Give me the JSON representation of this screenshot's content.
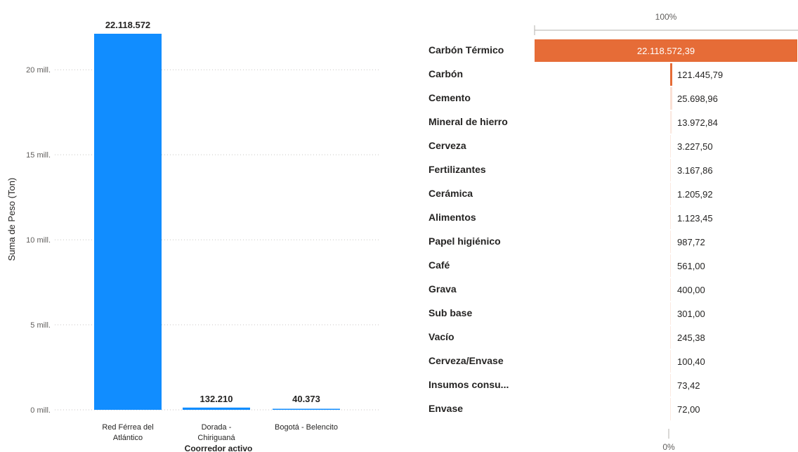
{
  "chart_data": [
    {
      "type": "bar",
      "ylabel": "Suma de Peso (Ton)",
      "xlabel": "Coorredor activo",
      "categories": [
        "Red Férrea del Atlántico",
        "Dorada - Chiriguaná",
        "Bogotá - Belencito"
      ],
      "category_lines": [
        [
          "Red Férrea del",
          "Atlántico"
        ],
        [
          "Dorada -",
          "Chiriguaná"
        ],
        [
          "Bogotá - Belencito"
        ]
      ],
      "values": [
        22118572,
        132210,
        40373
      ],
      "value_labels": [
        "22.118.572",
        "132.210",
        "40.373"
      ],
      "yticks": [
        0,
        5000000,
        10000000,
        15000000,
        20000000
      ],
      "ytick_labels": [
        "0 mill.",
        "5 mill.",
        "10 mill.",
        "15 mill.",
        "20 mill."
      ],
      "ylim": [
        0,
        22118572
      ],
      "grid": true,
      "color": "#118DFF"
    },
    {
      "type": "bar",
      "orientation": "horizontal",
      "top_label": "100%",
      "bottom_label": "0%",
      "categories": [
        "Carbón Térmico",
        "Carbón",
        "Cemento",
        "Mineral de hierro",
        "Cerveza",
        "Fertilizantes",
        "Cerámica",
        "Alimentos",
        "Papel higiénico",
        "Café",
        "Grava",
        "Sub base",
        "Vacío",
        "Cerveza/Envase",
        "Insumos consu...",
        "Envase"
      ],
      "values": [
        22118572.39,
        121445.79,
        25698.96,
        13972.84,
        3227.5,
        3167.86,
        1205.92,
        1123.45,
        987.72,
        561.0,
        400.0,
        301.0,
        245.38,
        100.4,
        73.42,
        72.0
      ],
      "value_labels": [
        "22.118.572,39",
        "121.445,79",
        "25.698,96",
        "13.972,84",
        "3.227,50",
        "3.167,86",
        "1.205,92",
        "1.123,45",
        "987,72",
        "561,00",
        "400,00",
        "301,00",
        "245,38",
        "100,40",
        "73,42",
        "72,00"
      ],
      "color": "#E66C37"
    }
  ]
}
